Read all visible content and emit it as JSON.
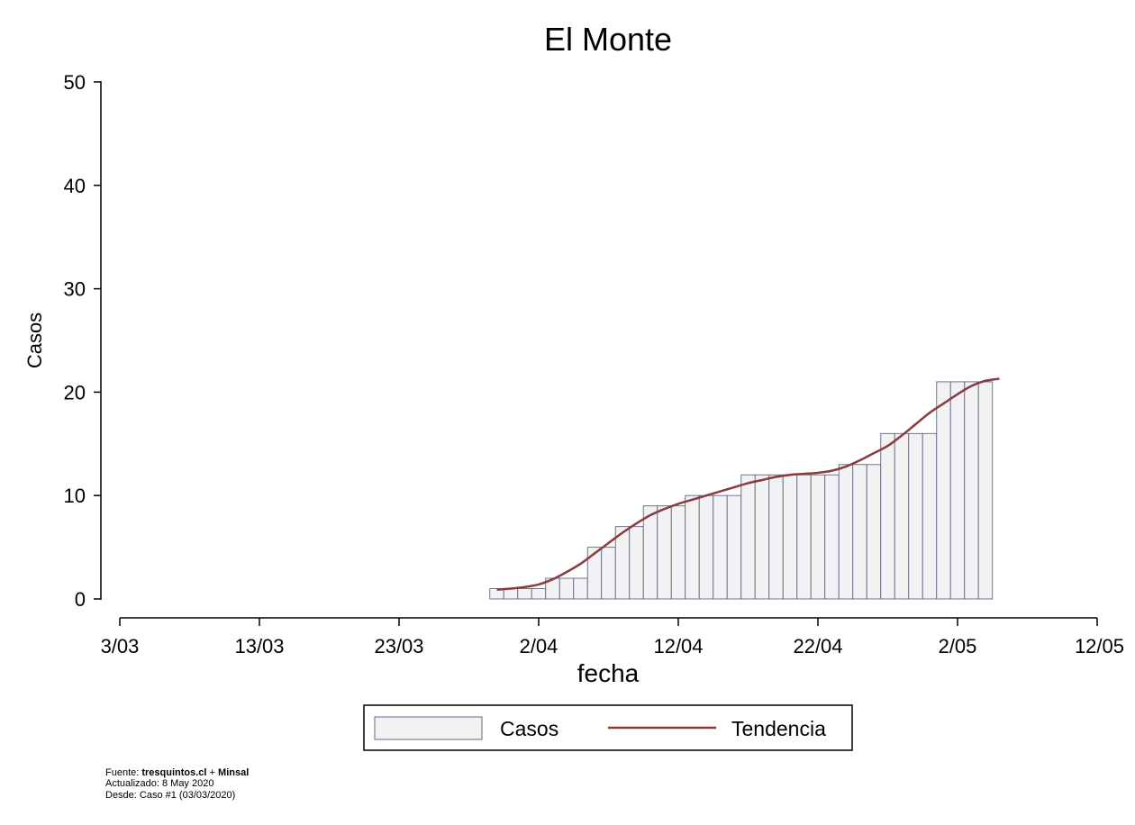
{
  "chart_data": {
    "type": "bar",
    "title": "El Monte",
    "xlabel": "fecha",
    "ylabel": "Casos",
    "ylim": [
      0,
      50
    ],
    "yticks": [
      0,
      10,
      20,
      30,
      40,
      50
    ],
    "xlim": [
      "2020-03-03",
      "2020-05-12"
    ],
    "xticks": [
      {
        "date": "2020-03-03",
        "label": "3/03"
      },
      {
        "date": "2020-03-13",
        "label": "13/03"
      },
      {
        "date": "2020-03-23",
        "label": "23/03"
      },
      {
        "date": "2020-04-02",
        "label": "2/04"
      },
      {
        "date": "2020-04-12",
        "label": "12/04"
      },
      {
        "date": "2020-04-22",
        "label": "22/04"
      },
      {
        "date": "2020-05-02",
        "label": "2/05"
      },
      {
        "date": "2020-05-12",
        "label": "12/05"
      }
    ],
    "grid": false,
    "legend_position": "bottom",
    "series": [
      {
        "name": "Casos",
        "type": "bar",
        "color": "#f2f2f2",
        "edge_color": "#5a6b8c",
        "points": [
          {
            "x": "2020-03-30",
            "y": 1
          },
          {
            "x": "2020-03-31",
            "y": 1
          },
          {
            "x": "2020-04-01",
            "y": 1
          },
          {
            "x": "2020-04-02",
            "y": 1
          },
          {
            "x": "2020-04-03",
            "y": 2
          },
          {
            "x": "2020-04-04",
            "y": 2
          },
          {
            "x": "2020-04-05",
            "y": 2
          },
          {
            "x": "2020-04-06",
            "y": 5
          },
          {
            "x": "2020-04-07",
            "y": 5
          },
          {
            "x": "2020-04-08",
            "y": 7
          },
          {
            "x": "2020-04-09",
            "y": 7
          },
          {
            "x": "2020-04-10",
            "y": 9
          },
          {
            "x": "2020-04-11",
            "y": 9
          },
          {
            "x": "2020-04-12",
            "y": 9
          },
          {
            "x": "2020-04-13",
            "y": 10
          },
          {
            "x": "2020-04-14",
            "y": 10
          },
          {
            "x": "2020-04-15",
            "y": 10
          },
          {
            "x": "2020-04-16",
            "y": 10
          },
          {
            "x": "2020-04-17",
            "y": 12
          },
          {
            "x": "2020-04-18",
            "y": 12
          },
          {
            "x": "2020-04-19",
            "y": 12
          },
          {
            "x": "2020-04-20",
            "y": 12
          },
          {
            "x": "2020-04-21",
            "y": 12
          },
          {
            "x": "2020-04-22",
            "y": 12
          },
          {
            "x": "2020-04-23",
            "y": 12
          },
          {
            "x": "2020-04-24",
            "y": 13
          },
          {
            "x": "2020-04-25",
            "y": 13
          },
          {
            "x": "2020-04-26",
            "y": 13
          },
          {
            "x": "2020-04-27",
            "y": 16
          },
          {
            "x": "2020-04-28",
            "y": 16
          },
          {
            "x": "2020-04-29",
            "y": 16
          },
          {
            "x": "2020-04-30",
            "y": 16
          },
          {
            "x": "2020-05-01",
            "y": 21
          },
          {
            "x": "2020-05-02",
            "y": 21
          },
          {
            "x": "2020-05-03",
            "y": 21
          },
          {
            "x": "2020-05-04",
            "y": 21
          }
        ]
      },
      {
        "name": "Tendencia",
        "type": "line",
        "color": "#8b3a3e",
        "points": [
          {
            "x": "2020-03-30",
            "y": 0.9
          },
          {
            "x": "2020-03-31",
            "y": 1.0
          },
          {
            "x": "2020-04-01",
            "y": 1.15
          },
          {
            "x": "2020-04-02",
            "y": 1.4
          },
          {
            "x": "2020-04-03",
            "y": 1.9
          },
          {
            "x": "2020-04-04",
            "y": 2.6
          },
          {
            "x": "2020-04-05",
            "y": 3.4
          },
          {
            "x": "2020-04-06",
            "y": 4.4
          },
          {
            "x": "2020-04-07",
            "y": 5.4
          },
          {
            "x": "2020-04-08",
            "y": 6.4
          },
          {
            "x": "2020-04-09",
            "y": 7.3
          },
          {
            "x": "2020-04-10",
            "y": 8.1
          },
          {
            "x": "2020-04-11",
            "y": 8.7
          },
          {
            "x": "2020-04-12",
            "y": 9.2
          },
          {
            "x": "2020-04-13",
            "y": 9.6
          },
          {
            "x": "2020-04-14",
            "y": 10.0
          },
          {
            "x": "2020-04-15",
            "y": 10.4
          },
          {
            "x": "2020-04-16",
            "y": 10.8
          },
          {
            "x": "2020-04-17",
            "y": 11.2
          },
          {
            "x": "2020-04-18",
            "y": 11.5
          },
          {
            "x": "2020-04-19",
            "y": 11.8
          },
          {
            "x": "2020-04-20",
            "y": 12.0
          },
          {
            "x": "2020-04-21",
            "y": 12.1
          },
          {
            "x": "2020-04-22",
            "y": 12.2
          },
          {
            "x": "2020-04-23",
            "y": 12.4
          },
          {
            "x": "2020-04-24",
            "y": 12.8
          },
          {
            "x": "2020-04-25",
            "y": 13.4
          },
          {
            "x": "2020-04-26",
            "y": 14.1
          },
          {
            "x": "2020-04-27",
            "y": 14.8
          },
          {
            "x": "2020-04-28",
            "y": 15.8
          },
          {
            "x": "2020-04-29",
            "y": 16.9
          },
          {
            "x": "2020-04-30",
            "y": 18.0
          },
          {
            "x": "2020-05-01",
            "y": 18.9
          },
          {
            "x": "2020-05-02",
            "y": 19.8
          },
          {
            "x": "2020-05-03",
            "y": 20.6
          },
          {
            "x": "2020-05-04",
            "y": 21.1
          },
          {
            "x": "2020-05-05",
            "y": 21.3
          }
        ]
      }
    ]
  },
  "footer": {
    "line1_prefix": "Fuente: ",
    "line1_bold_a": "tresquintos.cl",
    "line1_mid": " + ",
    "line1_bold_b": "Minsal",
    "line2": "Actualizado: 8 May 2020",
    "line3": "Desde: Caso #1  (03/03/2020)"
  }
}
